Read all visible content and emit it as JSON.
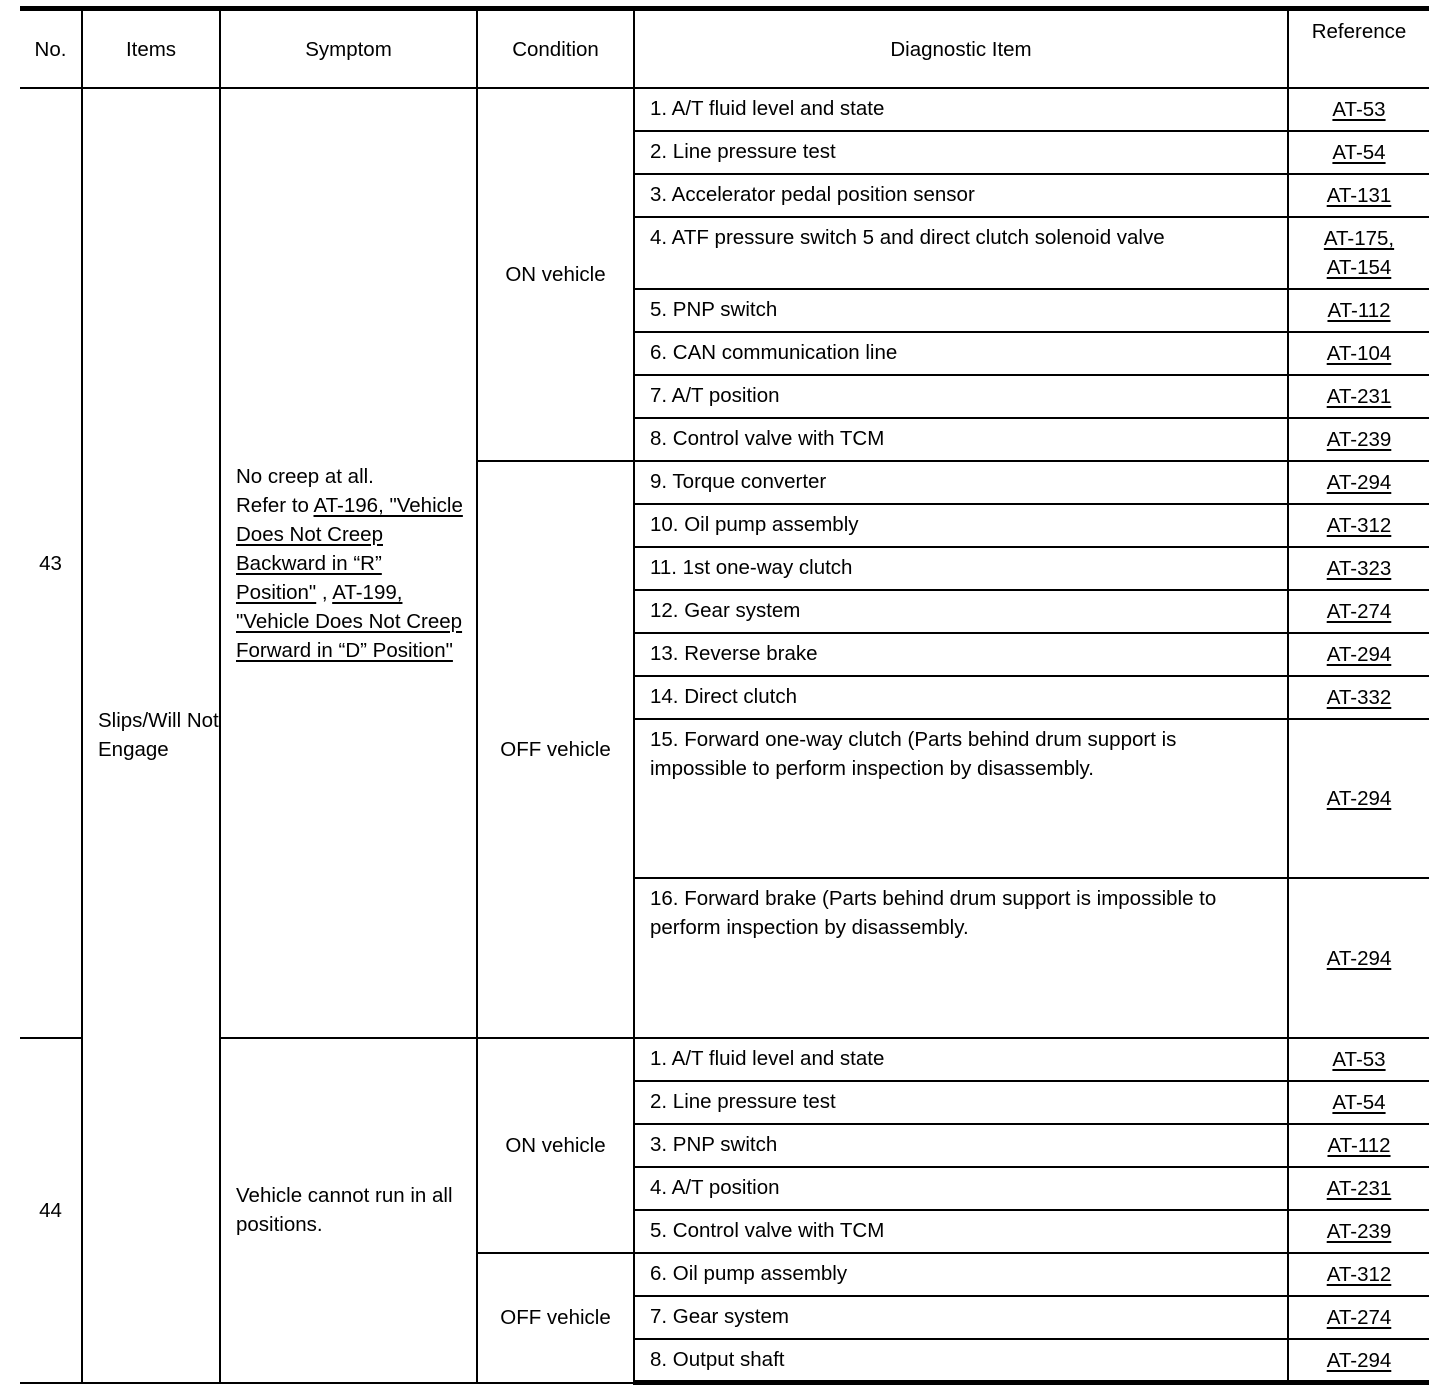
{
  "headers": {
    "no": "No.",
    "items": "Items",
    "symptom": "Symptom",
    "condition": "Condition",
    "diagnostic": "Diagnostic Item",
    "reference": "Reference"
  },
  "items_label": "Slips/Will Not Engage",
  "groups": [
    {
      "no": "43",
      "symptom": [
        {
          "text": "No creep at all.",
          "link": false,
          "br": true
        },
        {
          "text": "Refer to ",
          "link": false
        },
        {
          "text": "AT-196, \"Vehicle Does Not Creep Backward in “R” Position\"",
          "link": true
        },
        {
          "text": " , ",
          "link": false
        },
        {
          "text": "AT-199, \"Vehicle Does Not Creep Forward in “D” Position\"",
          "link": true
        }
      ],
      "conditions": [
        {
          "label": "ON vehicle",
          "rows": [
            {
              "item": "1. A/T fluid level and state",
              "refs": [
                "AT-53"
              ]
            },
            {
              "item": "2. Line pressure test",
              "refs": [
                "AT-54"
              ]
            },
            {
              "item": "3. Accelerator pedal position sensor",
              "refs": [
                "AT-131"
              ]
            },
            {
              "item": "4. ATF pressure switch 5 and direct clutch solenoid valve",
              "refs": [
                "AT-175,",
                "AT-154"
              ]
            },
            {
              "item": "5. PNP switch",
              "refs": [
                "AT-112"
              ]
            },
            {
              "item": "6. CAN communication line",
              "refs": [
                "AT-104"
              ]
            },
            {
              "item": "7. A/T position",
              "refs": [
                "AT-231"
              ]
            },
            {
              "item": "8. Control valve with TCM",
              "refs": [
                "AT-239"
              ]
            }
          ]
        },
        {
          "label": "OFF vehicle",
          "rows": [
            {
              "item": "9. Torque converter",
              "refs": [
                "AT-294"
              ]
            },
            {
              "item": "10. Oil pump assembly",
              "refs": [
                "AT-312"
              ]
            },
            {
              "item": "11. 1st one-way clutch",
              "refs": [
                "AT-323"
              ]
            },
            {
              "item": "12. Gear system",
              "refs": [
                "AT-274"
              ]
            },
            {
              "item": "13. Reverse brake",
              "refs": [
                "AT-294"
              ]
            },
            {
              "item": "14. Direct clutch",
              "refs": [
                "AT-332"
              ]
            },
            {
              "item": "15. Forward one-way clutch (Parts behind drum support is impossible to perform inspection by disassembly.",
              "refs": [
                "AT-294"
              ]
            },
            {
              "item": "16. Forward brake (Parts behind drum support is impossible to perform inspection by disassembly.",
              "refs": [
                "AT-294"
              ]
            }
          ]
        }
      ]
    },
    {
      "no": "44",
      "symptom": [
        {
          "text": "Vehicle cannot run in all positions.",
          "link": false
        }
      ],
      "conditions": [
        {
          "label": "ON vehicle",
          "rows": [
            {
              "item": "1. A/T fluid level and state",
              "refs": [
                "AT-53"
              ]
            },
            {
              "item": "2. Line pressure test",
              "refs": [
                "AT-54"
              ]
            },
            {
              "item": "3. PNP switch",
              "refs": [
                "AT-112"
              ]
            },
            {
              "item": "4. A/T position",
              "refs": [
                "AT-231"
              ]
            },
            {
              "item": "5. Control valve with TCM",
              "refs": [
                "AT-239"
              ]
            }
          ]
        },
        {
          "label": "OFF vehicle",
          "rows": [
            {
              "item": "6. Oil pump assembly",
              "refs": [
                "AT-312"
              ]
            },
            {
              "item": "7. Gear system",
              "refs": [
                "AT-274"
              ]
            },
            {
              "item": "8. Output shaft",
              "refs": [
                "AT-294"
              ]
            }
          ]
        }
      ]
    }
  ]
}
